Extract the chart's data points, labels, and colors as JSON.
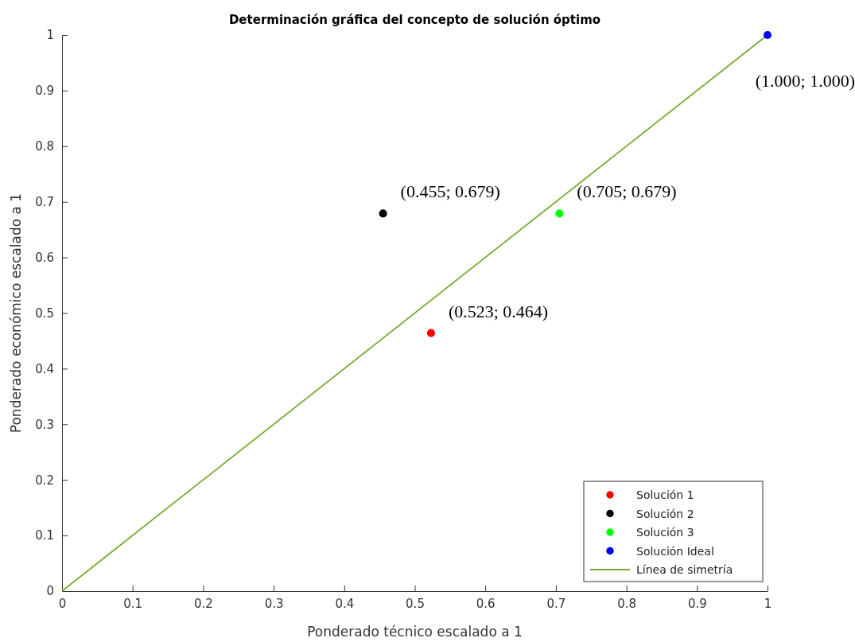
{
  "chart_data": {
    "type": "scatter",
    "title": "Determinación gráfica del concepto de solución óptimo",
    "xlabel": "Ponderado técnico escalado a 1",
    "ylabel": "Ponderado económico escalado a 1",
    "series": [
      {
        "name": "Solución 1",
        "color": "#ff0000",
        "x": [
          0.523
        ],
        "values": [
          0.464
        ]
      },
      {
        "name": "Solución 2",
        "color": "#000000",
        "x": [
          0.455
        ],
        "values": [
          0.679
        ]
      },
      {
        "name": "Solución 3",
        "color": "#00ff00",
        "x": [
          0.705
        ],
        "values": [
          0.679
        ]
      },
      {
        "name": "Solución Ideal",
        "color": "#0000ff",
        "x": [
          1.0
        ],
        "values": [
          1.0
        ]
      },
      {
        "name": "Línea de simetría",
        "type": "line",
        "marker": "none",
        "color": "#77ac30",
        "x": [
          0,
          1
        ],
        "values": [
          0,
          1
        ]
      }
    ],
    "annotations": [
      {
        "text": "(0.523; 0.464)",
        "x": 0.523,
        "y": 0.464
      },
      {
        "text": "(0.455; 0.679)",
        "x": 0.455,
        "y": 0.679
      },
      {
        "text": "(0.705; 0.679)",
        "x": 0.705,
        "y": 0.679
      },
      {
        "text": "(1.000; 1.000)",
        "x": 1.0,
        "y": 1.0
      }
    ],
    "xlim": [
      0,
      1
    ],
    "ylim": [
      0,
      1
    ],
    "xticks": [
      0,
      0.1,
      0.2,
      0.3,
      0.4,
      0.5,
      0.6,
      0.7,
      0.8,
      0.9,
      1
    ],
    "yticks": [
      0,
      0.1,
      0.2,
      0.3,
      0.4,
      0.5,
      0.6,
      0.7,
      0.8,
      0.9,
      1
    ],
    "marker": "circle",
    "legend": "bottom right",
    "grid": false
  }
}
